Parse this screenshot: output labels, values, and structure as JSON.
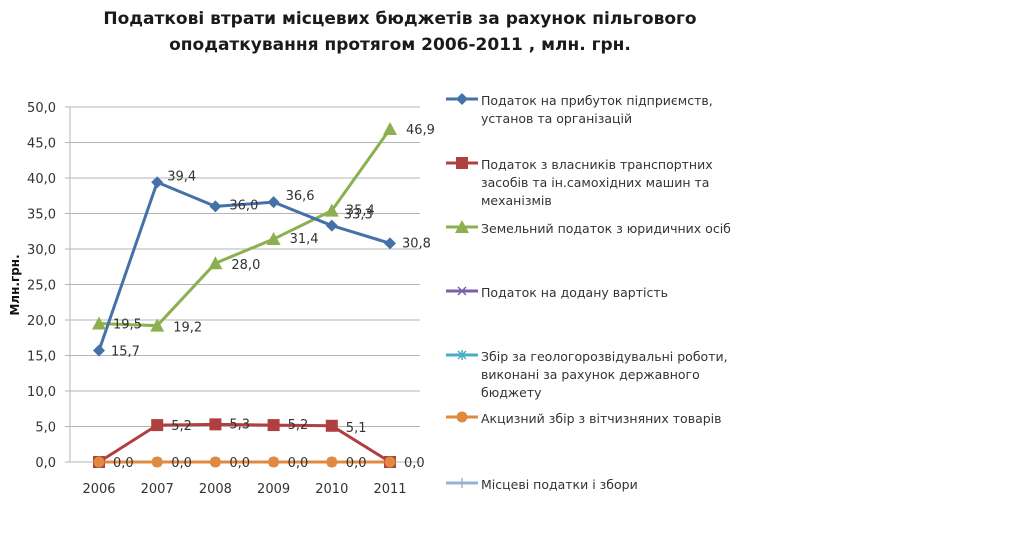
{
  "chart_data": {
    "type": "line",
    "title": "Податкові втрати місцевих бюджетів за рахунок пільгового оподаткування протягом 2006-2011 , млн. грн.",
    "xlabel": "",
    "ylabel": "Млн.грн.",
    "ylim": [
      0,
      50
    ],
    "yticks": [
      "0,0",
      "5,0",
      "10,0",
      "15,0",
      "20,0",
      "25,0",
      "30,0",
      "35,0",
      "40,0",
      "45,0",
      "50,0"
    ],
    "ytick_values": [
      0,
      5,
      10,
      15,
      20,
      25,
      30,
      35,
      40,
      45,
      50
    ],
    "categories": [
      "2006",
      "2007",
      "2008",
      "2009",
      "2010",
      "2011"
    ],
    "grid": true,
    "legend_position": "right",
    "series": [
      {
        "name": "Податок на прибуток підприємств, установ та організацій",
        "color": "#4472a8",
        "marker": "diamond",
        "values": [
          15.7,
          39.4,
          36.0,
          36.6,
          33.3,
          30.8
        ],
        "labels": [
          "15,7",
          "39,4",
          "36,0",
          "36,6",
          "33,3",
          "30,8"
        ]
      },
      {
        "name": "Податок з власників транспортних засобів та ін.самохідних машин та механізмів",
        "color": "#b04040",
        "marker": "square",
        "values": [
          0.0,
          5.2,
          5.3,
          5.2,
          5.1,
          0.0
        ],
        "labels": [
          "",
          "5,2",
          "5,3",
          "5,2",
          "5,1",
          ""
        ]
      },
      {
        "name": "Земельний податок з юридичних осіб",
        "color": "#8cb050",
        "marker": "triangle",
        "values": [
          19.5,
          19.2,
          28.0,
          31.4,
          35.4,
          46.9
        ],
        "labels": [
          "19,5",
          "19,2",
          "28,0",
          "31,4",
          "35,4",
          "46,9"
        ]
      },
      {
        "name": "Податок на додану вартість",
        "color": "#7b5ea7",
        "marker": "x",
        "values": [
          0.0,
          0.0,
          0.0,
          0.0,
          0.0,
          0.0
        ],
        "labels": [
          "",
          "",
          "",
          "",
          "",
          ""
        ]
      },
      {
        "name": "Збір за геологорозвідувальні роботи, виконані за рахунок державного бюджету",
        "color": "#4aacc6",
        "marker": "star",
        "values": [
          0.0,
          0.0,
          0.0,
          0.0,
          0.0,
          0.0
        ],
        "labels": [
          "",
          "",
          "",
          "",
          "",
          ""
        ]
      },
      {
        "name": "Акцизний збір з вітчизняних товарів",
        "color": "#e08a40",
        "marker": "circle",
        "values": [
          0.0,
          0.0,
          0.0,
          0.0,
          0.0,
          0.0
        ],
        "labels": [
          "",
          "",
          "",
          "",
          "",
          ""
        ]
      },
      {
        "name": "Місцеві податки і збори",
        "color": "#95b3d7",
        "marker": "plus",
        "values": [
          0.0,
          0.0,
          0.0,
          0.0,
          0.0,
          0.0
        ],
        "labels": [
          "0,0",
          "0,0",
          "0,0",
          "0,0",
          "0,0",
          "0,0"
        ]
      }
    ]
  }
}
